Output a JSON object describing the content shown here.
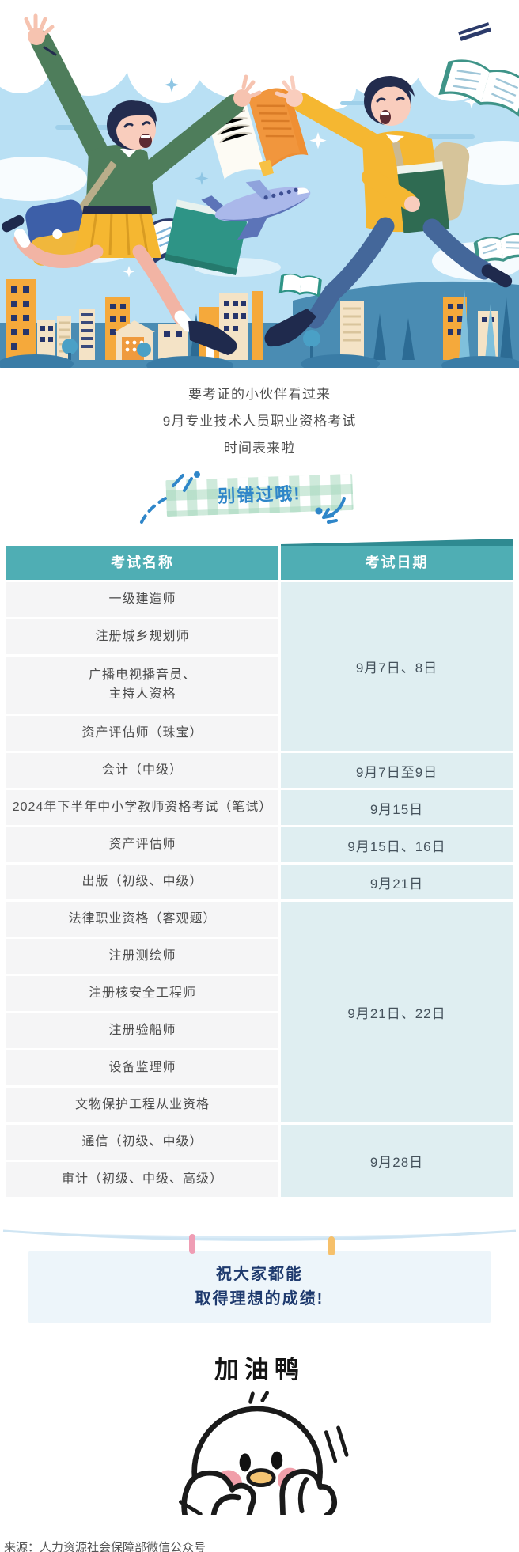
{
  "intro": {
    "lines": [
      "要考证的小伙伴看过来",
      "9月专业技术人员职业资格考试",
      "时间表来啦"
    ]
  },
  "banner": {
    "label": "别错过哦!"
  },
  "table": {
    "headers": [
      "考试名称",
      "考试日期"
    ],
    "rows": [
      "一级建造师",
      "注册城乡规划师",
      "广播电视播音员、\n主持人资格",
      "资产评估师（珠宝）",
      "会计（中级）",
      "2024年下半年中小学教师资格考试（笔试）",
      "资产评估师",
      "出版（初级、中级）",
      "法律职业资格（客观题）",
      "注册测绘师",
      "注册核安全工程师",
      "注册验船师",
      "设备监理师",
      "文物保护工程从业资格",
      "通信（初级、中级）",
      "审计（初级、中级、高级）"
    ],
    "date_groups": [
      {
        "label": "9月7日、8日",
        "start": 1,
        "span": 4
      },
      {
        "label": "9月7日至9日",
        "start": 5,
        "span": 1
      },
      {
        "label": "9月15日",
        "start": 6,
        "span": 1
      },
      {
        "label": "9月15日、16日",
        "start": 7,
        "span": 1
      },
      {
        "label": "9月21日",
        "start": 8,
        "span": 1
      },
      {
        "label": "9月21日、22日",
        "start": 9,
        "span": 6
      },
      {
        "label": "9月28日",
        "start": 15,
        "span": 2
      }
    ]
  },
  "blessing": {
    "line1": "祝大家都能",
    "line2": "取得理想的成绩!"
  },
  "cheer": {
    "title": "加油鸭"
  },
  "footer": {
    "source": "来源：人力资源社会保障部微信公众号"
  },
  "colors": {
    "header_teal": "#4FAEB4",
    "header_flap": "#2F8A91",
    "date_bg": "#DFEEF1",
    "row_bg": "#F5F5F6",
    "banner_blue": "#2F86C9",
    "blessing_bg": "#EDF5FA",
    "blessing_text": "#1E3A6E",
    "pill_pink": "#EF9DB4",
    "pill_yellow": "#F6C06A",
    "sky_blue": "#B9E0F4",
    "city_blue": "#4A8CB3",
    "book_orange": "#EF8F33",
    "sweater_green": "#4E7D5B",
    "sweater_yellow": "#F5B731"
  }
}
